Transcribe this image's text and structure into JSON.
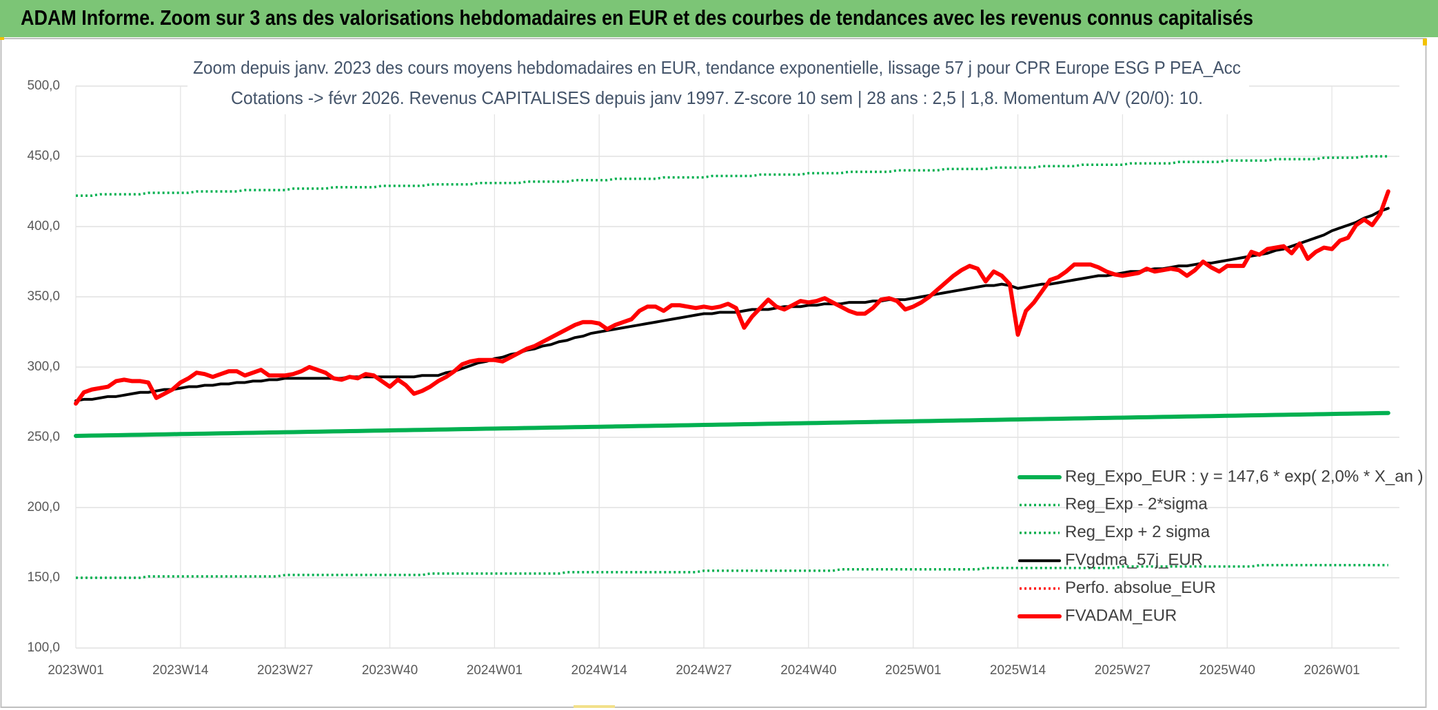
{
  "header": {
    "title": "ADAM Informe. Zoom sur 3 ans des valorisations hebdomadaires en EUR et des courbes de tendances avec les revenus connus capitalisés"
  },
  "chart_data": {
    "type": "line",
    "title": "Zoom depuis janv. 2023 des cours moyens hebdomadaires en EUR, tendance exponentielle, lissage 57 j pour CPR Europe ESG P PEA_Acc",
    "subtitle": "Cotations -> févr 2026. Revenus CAPITALISES depuis janv 1997. Z-score 10 sem | 28 ans : 2,5 | 1,8. Momentum A/V (20/0): 10.",
    "categories": [
      "2023W01",
      null,
      null,
      null,
      null,
      null,
      null,
      null,
      null,
      null,
      null,
      null,
      null,
      "2023W14",
      null,
      null,
      null,
      null,
      null,
      null,
      null,
      null,
      null,
      null,
      null,
      null,
      "2023W27",
      null,
      null,
      null,
      null,
      null,
      null,
      null,
      null,
      null,
      null,
      null,
      null,
      "2023W40",
      null,
      null,
      null,
      null,
      null,
      null,
      null,
      null,
      null,
      null,
      null,
      null,
      "2024W01",
      null,
      null,
      null,
      null,
      null,
      null,
      null,
      null,
      null,
      null,
      null,
      null,
      "2024W14",
      null,
      null,
      null,
      null,
      null,
      null,
      null,
      null,
      null,
      null,
      null,
      null,
      "2024W27",
      null,
      null,
      null,
      null,
      null,
      null,
      null,
      null,
      null,
      null,
      null,
      null,
      "2024W40",
      null,
      null,
      null,
      null,
      null,
      null,
      null,
      null,
      null,
      null,
      null,
      null,
      "2025W01",
      null,
      null,
      null,
      null,
      null,
      null,
      null,
      null,
      null,
      null,
      null,
      null,
      "2025W14",
      null,
      null,
      null,
      null,
      null,
      null,
      null,
      null,
      null,
      null,
      null,
      null,
      "2025W27",
      null,
      null,
      null,
      null,
      null,
      null,
      null,
      null,
      null,
      null,
      null,
      null,
      "2025W40",
      null,
      null,
      null,
      null,
      null,
      null,
      null,
      null,
      null,
      null,
      null,
      null,
      "2026W01",
      null,
      null,
      null,
      null,
      null,
      null,
      null
    ],
    "ylim": [
      100,
      500
    ],
    "yticks": [
      {
        "value": 100,
        "label": "100,0"
      },
      {
        "value": 150,
        "label": "150,0"
      },
      {
        "value": 200,
        "label": "200,0"
      },
      {
        "value": 250,
        "label": "250,0"
      },
      {
        "value": 300,
        "label": "300,0"
      },
      {
        "value": 350,
        "label": "350,0"
      },
      {
        "value": 400,
        "label": "400,0"
      },
      {
        "value": 450,
        "label": "450,0"
      },
      {
        "value": 500,
        "label": "500,0"
      }
    ],
    "grid": true,
    "legend": "lower right",
    "series": [
      {
        "name": "Reg_Expo_EUR : y = 147,6 * exp( 2,0% *  X_an )",
        "color": "#00b050",
        "style": "bold",
        "values": [
          251.0,
          251.1,
          251.2,
          251.3,
          251.4,
          251.5,
          251.6,
          251.7,
          251.8,
          251.9,
          252.0,
          252.1,
          252.2,
          252.3,
          252.4,
          252.5,
          252.6,
          252.7,
          252.8,
          252.9,
          253.0,
          253.1,
          253.2,
          253.3,
          253.4,
          253.5,
          253.6,
          253.7,
          253.8,
          253.9,
          254.0,
          254.1,
          254.2,
          254.3,
          254.4,
          254.5,
          254.6,
          254.7,
          254.8,
          254.9,
          255.0,
          255.1,
          255.2,
          255.3,
          255.4,
          255.5,
          255.6,
          255.7,
          255.8,
          255.9,
          256.0,
          256.1,
          256.2,
          256.3,
          256.4,
          256.5,
          256.6,
          256.7,
          256.8,
          256.9,
          257.0,
          257.1,
          257.2,
          257.3,
          257.4,
          257.5,
          257.6,
          257.7,
          257.8,
          257.9,
          258.0,
          258.1,
          258.2,
          258.3,
          258.4,
          258.5,
          258.6,
          258.7,
          258.8,
          258.9,
          259.0,
          259.1,
          259.2,
          259.3,
          259.4,
          259.5,
          259.6,
          259.7,
          259.8,
          259.9,
          260.0,
          260.1,
          260.2,
          260.3,
          260.4,
          260.5,
          260.6,
          260.7,
          260.8,
          260.9,
          261.0,
          261.1,
          261.2,
          261.3,
          261.4,
          261.5,
          261.6,
          261.7,
          261.8,
          261.9,
          262.0,
          262.1,
          262.2,
          262.3,
          262.4,
          262.5,
          262.6,
          262.7,
          262.8,
          262.9,
          263.0,
          263.1,
          263.2,
          263.3,
          263.4,
          263.5,
          263.6,
          263.7,
          263.8,
          263.9,
          264.0,
          264.1,
          264.2,
          264.3,
          264.4,
          264.5,
          264.6,
          264.7,
          264.8,
          264.9,
          265.0,
          265.1,
          265.2,
          265.3,
          265.4,
          265.5,
          265.6,
          265.7,
          265.8,
          265.9,
          266.0,
          266.1,
          266.2,
          266.3,
          266.4,
          266.5,
          266.6,
          266.7,
          266.8,
          266.9,
          267.0,
          267.1,
          267.2,
          267.3
        ]
      },
      {
        "name": "Reg_Exp - 2*sigma",
        "color": "#00b050",
        "style": "dotted",
        "values": [
          150,
          150,
          150,
          150,
          150,
          150,
          150,
          150,
          150,
          151,
          151,
          151,
          151,
          151,
          151,
          151,
          151,
          151,
          151,
          151,
          151,
          151,
          151,
          151,
          151,
          151,
          152,
          152,
          152,
          152,
          152,
          152,
          152,
          152,
          152,
          152,
          152,
          152,
          152,
          152,
          152,
          152,
          152,
          152,
          153,
          153,
          153,
          153,
          153,
          153,
          153,
          153,
          153,
          153,
          153,
          153,
          153,
          153,
          153,
          153,
          153,
          154,
          154,
          154,
          154,
          154,
          154,
          154,
          154,
          154,
          154,
          154,
          154,
          154,
          154,
          154,
          154,
          154,
          155,
          155,
          155,
          155,
          155,
          155,
          155,
          155,
          155,
          155,
          155,
          155,
          155,
          155,
          155,
          155,
          155,
          156,
          156,
          156,
          156,
          156,
          156,
          156,
          156,
          156,
          156,
          156,
          156,
          156,
          156,
          156,
          156,
          156,
          156,
          157,
          157,
          157,
          157,
          157,
          157,
          157,
          157,
          157,
          157,
          157,
          157,
          157,
          157,
          157,
          157,
          157,
          158,
          158,
          158,
          158,
          158,
          158,
          158,
          158,
          158,
          158,
          158,
          158,
          158,
          158,
          158,
          158,
          158,
          159,
          159,
          159,
          159,
          159,
          159,
          159,
          159,
          159,
          159,
          159,
          159,
          159,
          159,
          159,
          159,
          159
        ]
      },
      {
        "name": "Reg_Exp + 2 sigma",
        "color": "#00b050",
        "style": "dotted",
        "values": [
          422,
          422,
          422,
          423,
          423,
          423,
          423,
          423,
          423,
          424,
          424,
          424,
          424,
          424,
          424,
          425,
          425,
          425,
          425,
          425,
          425,
          426,
          426,
          426,
          426,
          426,
          426,
          427,
          427,
          427,
          427,
          427,
          428,
          428,
          428,
          428,
          428,
          428,
          429,
          429,
          429,
          429,
          429,
          429,
          430,
          430,
          430,
          430,
          430,
          430,
          431,
          431,
          431,
          431,
          431,
          431,
          432,
          432,
          432,
          432,
          432,
          432,
          433,
          433,
          433,
          433,
          433,
          434,
          434,
          434,
          434,
          434,
          434,
          435,
          435,
          435,
          435,
          435,
          435,
          436,
          436,
          436,
          436,
          436,
          436,
          437,
          437,
          437,
          437,
          437,
          437,
          438,
          438,
          438,
          438,
          438,
          439,
          439,
          439,
          439,
          439,
          439,
          440,
          440,
          440,
          440,
          440,
          440,
          441,
          441,
          441,
          441,
          441,
          441,
          442,
          442,
          442,
          442,
          442,
          442,
          443,
          443,
          443,
          443,
          443,
          444,
          444,
          444,
          444,
          444,
          444,
          445,
          445,
          445,
          445,
          445,
          445,
          446,
          446,
          446,
          446,
          446,
          446,
          447,
          447,
          447,
          447,
          447,
          447,
          448,
          448,
          448,
          448,
          448,
          448,
          449,
          449,
          449,
          449,
          449,
          450,
          450,
          450,
          450
        ]
      },
      {
        "name": "FVgdma_57j_EUR",
        "color": "#000000",
        "style": "solid",
        "values": [
          276,
          277,
          277,
          278,
          279,
          279,
          280,
          281,
          282,
          282,
          283,
          284,
          284,
          285,
          286,
          286,
          287,
          287,
          288,
          288,
          289,
          289,
          290,
          290,
          291,
          291,
          292,
          292,
          292,
          292,
          292,
          292,
          292,
          292,
          293,
          293,
          293,
          293,
          293,
          293,
          293,
          293,
          293,
          294,
          294,
          294,
          296,
          297,
          299,
          301,
          303,
          304,
          306,
          307,
          309,
          310,
          312,
          313,
          315,
          316,
          318,
          319,
          321,
          322,
          324,
          325,
          326,
          327,
          328,
          329,
          330,
          331,
          332,
          333,
          334,
          335,
          336,
          337,
          338,
          338,
          339,
          339,
          339,
          340,
          341,
          341,
          341,
          342,
          343,
          343,
          343,
          344,
          344,
          345,
          345,
          345,
          346,
          346,
          346,
          347,
          347,
          348,
          348,
          348,
          349,
          350,
          351,
          352,
          353,
          354,
          355,
          356,
          357,
          358,
          358,
          359,
          358,
          356,
          357,
          358,
          359,
          359,
          360,
          361,
          362,
          363,
          364,
          365,
          365,
          366,
          367,
          368,
          368,
          369,
          370,
          370,
          371,
          372,
          372,
          373,
          374,
          374,
          375,
          376,
          377,
          378,
          379,
          380,
          381,
          383,
          384,
          386,
          388,
          390,
          392,
          394,
          397,
          399,
          401,
          403,
          406,
          408,
          411,
          413
        ]
      },
      {
        "name": "Perfo. absolue_EUR",
        "color": "#ff0000",
        "style": "dotted"
      },
      {
        "name": "FVADAM_EUR",
        "color": "#ff0000",
        "style": "bold",
        "values": [
          274,
          282,
          284,
          285,
          286,
          290,
          291,
          290,
          290,
          289,
          278,
          281,
          284,
          289,
          292,
          296,
          295,
          293,
          295,
          297,
          297,
          294,
          296,
          298,
          294,
          294,
          294,
          295,
          297,
          300,
          298,
          296,
          292,
          291,
          293,
          292,
          295,
          294,
          290,
          286,
          291,
          287,
          281,
          283,
          286,
          290,
          293,
          297,
          302,
          304,
          305,
          305,
          305,
          304,
          307,
          310,
          313,
          315,
          318,
          321,
          324,
          327,
          330,
          332,
          332,
          331,
          327,
          330,
          332,
          334,
          340,
          343,
          343,
          340,
          344,
          344,
          343,
          342,
          343,
          342,
          343,
          345,
          342,
          328,
          336,
          342,
          348,
          343,
          341,
          344,
          347,
          346,
          347,
          349,
          346,
          343,
          340,
          338,
          338,
          342,
          348,
          349,
          347,
          341,
          343,
          346,
          350,
          355,
          360,
          365,
          369,
          372,
          370,
          361,
          368,
          365,
          359,
          323,
          340,
          346,
          354,
          362,
          364,
          368,
          373,
          373,
          373,
          371,
          368,
          366,
          365,
          366,
          367,
          370,
          368,
          369,
          370,
          369,
          365,
          369,
          375,
          371,
          368,
          372,
          372,
          372,
          382,
          380,
          384,
          385,
          386,
          381,
          388,
          377,
          382,
          385,
          384,
          390,
          392,
          401,
          405,
          401,
          409,
          425
        ]
      }
    ]
  }
}
